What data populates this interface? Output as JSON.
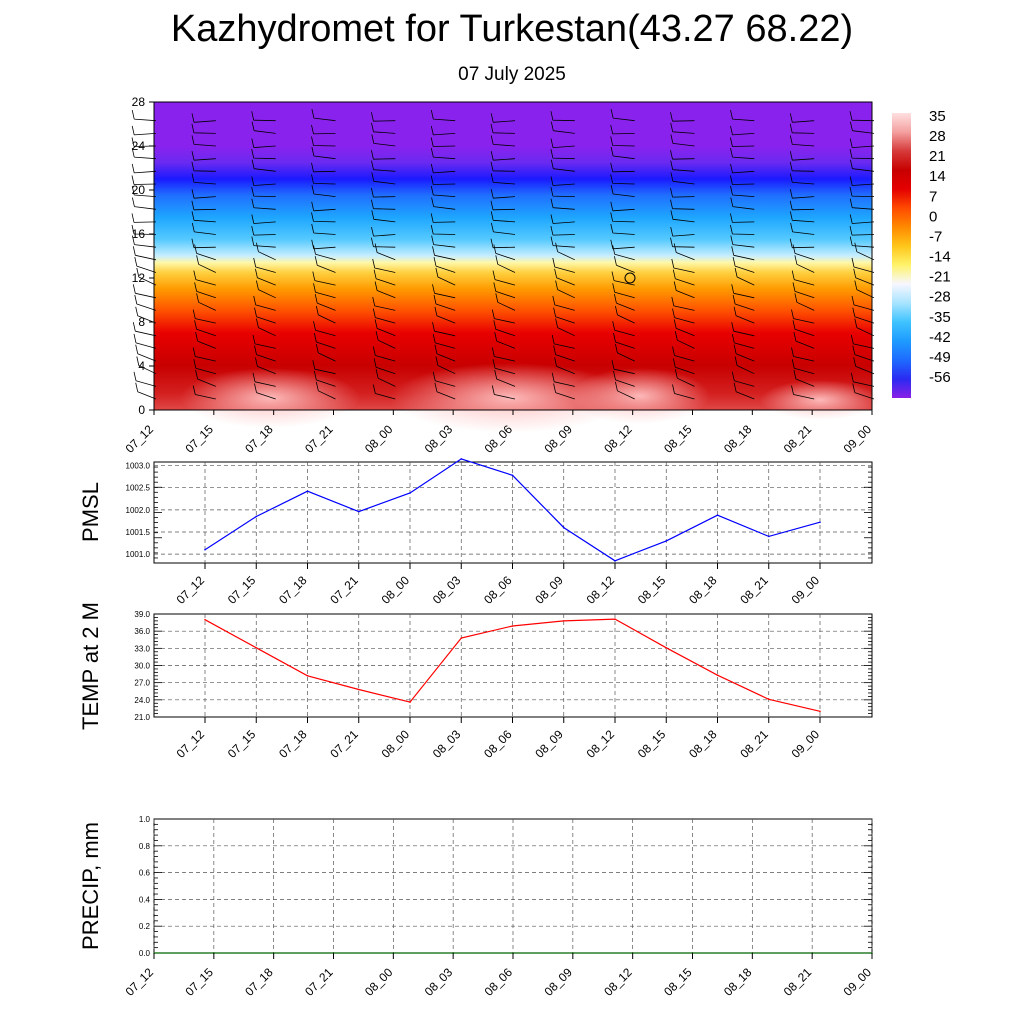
{
  "header": {
    "title": "Kazhydromet for Turkestan(43.27 68.22)",
    "subtitle": "07 July 2025"
  },
  "chart_data": [
    {
      "type": "heatmap",
      "x_labels": [
        "07_12",
        "07_15",
        "07_18",
        "07_21",
        "08_00",
        "08_03",
        "08_06",
        "08_09",
        "08_12",
        "08_15",
        "08_18",
        "08_21",
        "09_00"
      ],
      "y_ticks": [
        "0",
        "4",
        "8",
        "12",
        "16",
        "20",
        "24",
        "28"
      ],
      "ylim": [
        0,
        28
      ],
      "colorbar_labels": [
        "35",
        "28",
        "21",
        "14",
        "7",
        "0",
        "-7",
        "-14",
        "-21",
        "-28",
        "-35",
        "-42",
        "-49",
        "-56"
      ],
      "colorbar_range": [
        -60,
        38
      ],
      "colorbar_colors": [
        "#8a1fe6",
        "#2a2af2",
        "#1e6bff",
        "#1e9bff",
        "#3fc3ff",
        "#a8e4ff",
        "#f7f7ff",
        "#fff36a",
        "#ffc61a",
        "#ff8a00",
        "#ff4a00",
        "#e40000",
        "#c80000",
        "#d63a3a",
        "#f4a0a0",
        "#ffe0e0"
      ],
      "layers": [
        {
          "height": 0,
          "color": "#e04848"
        },
        {
          "height": 1.5,
          "color": "#d42020"
        },
        {
          "height": 4,
          "color": "#c80000"
        },
        {
          "height": 7,
          "color": "#e80000"
        },
        {
          "height": 9,
          "color": "#ff5000"
        },
        {
          "height": 11,
          "color": "#ff9a00"
        },
        {
          "height": 12.5,
          "color": "#ffd040"
        },
        {
          "height": 13.4,
          "color": "#fff7a8"
        },
        {
          "height": 14,
          "color": "#c8eeff"
        },
        {
          "height": 15.5,
          "color": "#55caff"
        },
        {
          "height": 17.5,
          "color": "#1ea6ff"
        },
        {
          "height": 19.5,
          "color": "#2070ff"
        },
        {
          "height": 21,
          "color": "#1a1aff"
        },
        {
          "height": 22.5,
          "color": "#6a2af0"
        },
        {
          "height": 24,
          "color": "#8a22ee"
        },
        {
          "height": 28,
          "color": "#8a22ee"
        }
      ],
      "annotation": "O"
    },
    {
      "type": "line",
      "ylabel": "PMSL",
      "x": [
        "07_12",
        "07_15",
        "07_18",
        "07_21",
        "08_00",
        "08_03",
        "08_06",
        "08_09",
        "08_12",
        "08_15",
        "08_18",
        "08_21",
        "09_00"
      ],
      "y_ticks": [
        "1001.0",
        "1001.5",
        "1002.0",
        "1002.5",
        "1003.0"
      ],
      "ylim": [
        1000.8,
        1003.08
      ],
      "series": [
        {
          "values": [
            1001.1,
            1001.85,
            1002.42,
            1001.96,
            1002.38,
            1003.15,
            1002.78,
            1001.6,
            1000.85,
            1001.3,
            1001.88,
            1001.4,
            1001.72
          ],
          "color": "#0000ff"
        }
      ],
      "grid": true
    },
    {
      "type": "line",
      "ylabel": "TEMP at 2 M",
      "x": [
        "07_12",
        "07_15",
        "07_18",
        "07_21",
        "08_00",
        "08_03",
        "08_06",
        "08_09",
        "08_12",
        "08_15",
        "08_18",
        "08_21",
        "09_00"
      ],
      "y_ticks": [
        "21.0",
        "24.0",
        "27.0",
        "30.0",
        "33.0",
        "36.0",
        "39.0"
      ],
      "ylim": [
        21,
        39
      ],
      "series": [
        {
          "values": [
            38.0,
            33.1,
            28.2,
            25.8,
            23.6,
            34.8,
            36.9,
            37.8,
            38.1,
            33.1,
            28.3,
            24.1,
            22.0
          ],
          "color": "#ff0000"
        }
      ],
      "grid": true
    },
    {
      "type": "line",
      "ylabel": "PRECIP, mm",
      "x": [
        "07_12",
        "07_15",
        "07_18",
        "07_21",
        "08_00",
        "08_03",
        "08_06",
        "08_09",
        "08_12",
        "08_15",
        "08_18",
        "08_21",
        "09_00"
      ],
      "y_ticks": [
        "0.0",
        "0.2",
        "0.4",
        "0.6",
        "0.8",
        "1.0"
      ],
      "ylim": [
        0,
        1.0
      ],
      "series": [
        {
          "values": [
            0,
            0,
            0,
            0,
            0,
            0,
            0,
            0,
            0,
            0,
            0,
            0,
            0
          ],
          "color": "#006400"
        }
      ],
      "grid": true
    }
  ]
}
